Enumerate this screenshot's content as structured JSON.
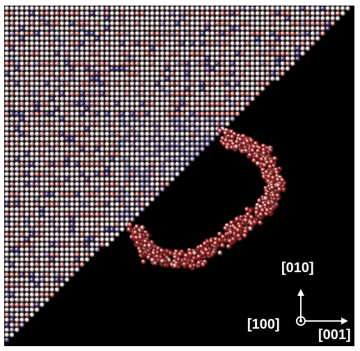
{
  "image": {
    "description_free": true,
    "background_color": "#000000",
    "atom_colors": {
      "white": "#e9e9ee",
      "red": "#d23a3a",
      "pink": "#e08a8a",
      "blue": "#4a4fa8",
      "light_blue": "#9aa0d6"
    }
  },
  "axes": {
    "up_label": "[010]",
    "out_of_plane_label": "[100]",
    "right_label": "[001]"
  }
}
